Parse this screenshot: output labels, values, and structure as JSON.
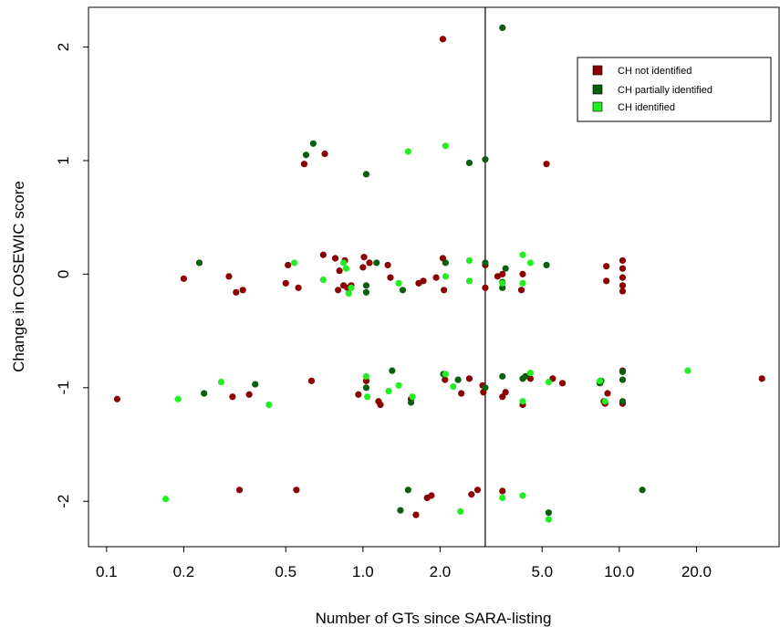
{
  "chart_data": {
    "type": "scatter",
    "xlabel": "Number of GTs since SARA-listing",
    "ylabel": "Change in COSEWIC score",
    "x_scale": "log",
    "xlim": [
      0.085,
      42
    ],
    "ylim": [
      -2.4,
      2.35
    ],
    "x_ticks": [
      {
        "value": 0.1,
        "label": "0.1"
      },
      {
        "value": 0.2,
        "label": "0.2"
      },
      {
        "value": 0.5,
        "label": "0.5"
      },
      {
        "value": 1.0,
        "label": "1.0"
      },
      {
        "value": 2.0,
        "label": "2.0"
      },
      {
        "value": 5.0,
        "label": "5.0"
      },
      {
        "value": 10.0,
        "label": "10.0"
      },
      {
        "value": 20.0,
        "label": "20.0"
      }
    ],
    "y_ticks": [
      {
        "value": 2,
        "label": "2"
      },
      {
        "value": 1,
        "label": "1"
      },
      {
        "value": 0,
        "label": "0"
      },
      {
        "value": -1,
        "label": "-1"
      },
      {
        "value": -2,
        "label": "-2"
      }
    ],
    "vline_x": 3.0,
    "grid": false,
    "legend_position": "top-right",
    "series": [
      {
        "name": "CH not identified",
        "color": "#8b0000",
        "points": [
          [
            0.11,
            -1.1
          ],
          [
            0.2,
            -0.04
          ],
          [
            0.3,
            -0.02
          ],
          [
            0.31,
            -1.08
          ],
          [
            0.32,
            -0.16
          ],
          [
            0.33,
            -1.9
          ],
          [
            0.34,
            -0.14
          ],
          [
            0.36,
            -1.06
          ],
          [
            0.5,
            -0.08
          ],
          [
            0.51,
            0.08
          ],
          [
            0.55,
            -1.9
          ],
          [
            0.56,
            -0.12
          ],
          [
            0.59,
            0.97
          ],
          [
            0.63,
            -0.94
          ],
          [
            0.7,
            0.17
          ],
          [
            0.71,
            1.06
          ],
          [
            0.78,
            0.14
          ],
          [
            0.8,
            -0.14
          ],
          [
            0.81,
            0.03
          ],
          [
            0.84,
            -0.1
          ],
          [
            0.85,
            0.12
          ],
          [
            0.87,
            -0.12
          ],
          [
            0.9,
            -0.1
          ],
          [
            0.96,
            -1.06
          ],
          [
            1.0,
            0.06
          ],
          [
            1.01,
            0.15
          ],
          [
            1.03,
            -0.94
          ],
          [
            1.06,
            0.1
          ],
          [
            1.15,
            -1.12
          ],
          [
            1.17,
            -1.15
          ],
          [
            1.25,
            0.08
          ],
          [
            1.28,
            -0.03
          ],
          [
            1.54,
            -1.1
          ],
          [
            1.61,
            -2.12
          ],
          [
            1.65,
            -0.08
          ],
          [
            1.72,
            -0.06
          ],
          [
            1.78,
            -1.97
          ],
          [
            1.85,
            -1.95
          ],
          [
            1.93,
            -0.03
          ],
          [
            2.05,
            2.07
          ],
          [
            2.05,
            0.14
          ],
          [
            2.07,
            -0.14
          ],
          [
            2.09,
            -0.93
          ],
          [
            2.42,
            -1.05
          ],
          [
            2.6,
            -0.92
          ],
          [
            2.65,
            -1.94
          ],
          [
            2.8,
            -1.9
          ],
          [
            2.93,
            -0.98
          ],
          [
            2.95,
            -1.04
          ],
          [
            3.0,
            0.08
          ],
          [
            3.0,
            -0.12
          ],
          [
            3.35,
            -0.02
          ],
          [
            3.5,
            0.0
          ],
          [
            3.5,
            -1.08
          ],
          [
            3.5,
            -1.91
          ],
          [
            3.6,
            -1.04
          ],
          [
            4.15,
            -0.14
          ],
          [
            4.2,
            0.0
          ],
          [
            4.2,
            -1.15
          ],
          [
            4.5,
            -0.92
          ],
          [
            5.2,
            0.97
          ],
          [
            5.5,
            -0.92
          ],
          [
            6.0,
            -0.96
          ],
          [
            8.7,
            -1.12
          ],
          [
            8.8,
            -1.14
          ],
          [
            8.9,
            0.07
          ],
          [
            8.9,
            -0.06
          ],
          [
            9.0,
            -1.05
          ],
          [
            10.3,
            0.12
          ],
          [
            10.3,
            0.05
          ],
          [
            10.3,
            -0.03
          ],
          [
            10.3,
            -0.1
          ],
          [
            10.3,
            -0.15
          ],
          [
            10.3,
            -0.85
          ],
          [
            10.3,
            -1.14
          ],
          [
            36.0,
            -0.92
          ]
        ]
      },
      {
        "name": "CH partially identified",
        "color": "#0b5e0b",
        "points": [
          [
            0.23,
            0.1
          ],
          [
            0.24,
            -1.05
          ],
          [
            0.38,
            -0.97
          ],
          [
            0.6,
            1.05
          ],
          [
            0.64,
            1.15
          ],
          [
            1.03,
            0.88
          ],
          [
            1.03,
            -0.1
          ],
          [
            1.03,
            -0.16
          ],
          [
            1.03,
            -1.0
          ],
          [
            1.13,
            0.1
          ],
          [
            1.3,
            -0.85
          ],
          [
            1.4,
            -2.08
          ],
          [
            1.43,
            -0.14
          ],
          [
            1.5,
            -1.9
          ],
          [
            1.54,
            -1.13
          ],
          [
            2.06,
            -0.88
          ],
          [
            2.1,
            0.1
          ],
          [
            2.35,
            -0.93
          ],
          [
            2.6,
            0.98
          ],
          [
            3.0,
            1.01
          ],
          [
            3.0,
            0.1
          ],
          [
            3.0,
            -1.0
          ],
          [
            3.5,
            2.17
          ],
          [
            3.5,
            -0.07
          ],
          [
            3.5,
            -0.12
          ],
          [
            3.5,
            -0.9
          ],
          [
            3.6,
            0.05
          ],
          [
            4.2,
            -0.92
          ],
          [
            4.3,
            -0.9
          ],
          [
            5.2,
            0.08
          ],
          [
            5.3,
            -2.1
          ],
          [
            8.4,
            -0.96
          ],
          [
            8.5,
            -0.94
          ],
          [
            10.3,
            -0.93
          ],
          [
            10.3,
            -0.86
          ],
          [
            10.3,
            -1.12
          ],
          [
            12.3,
            -1.9
          ]
        ]
      },
      {
        "name": "CH identified",
        "color": "#22ee22",
        "points": [
          [
            0.17,
            -1.98
          ],
          [
            0.19,
            -1.1
          ],
          [
            0.28,
            -0.95
          ],
          [
            0.43,
            -1.15
          ],
          [
            0.54,
            0.1
          ],
          [
            0.7,
            -0.05
          ],
          [
            0.84,
            0.1
          ],
          [
            0.86,
            0.05
          ],
          [
            0.88,
            -0.17
          ],
          [
            0.9,
            -0.12
          ],
          [
            1.03,
            -0.9
          ],
          [
            1.04,
            -1.08
          ],
          [
            1.26,
            -1.03
          ],
          [
            1.38,
            -0.08
          ],
          [
            1.38,
            -0.98
          ],
          [
            1.5,
            1.08
          ],
          [
            1.56,
            -1.08
          ],
          [
            2.1,
            1.13
          ],
          [
            2.1,
            -0.02
          ],
          [
            2.1,
            -0.88
          ],
          [
            2.25,
            -0.99
          ],
          [
            2.4,
            -2.09
          ],
          [
            2.6,
            0.12
          ],
          [
            2.6,
            -0.06
          ],
          [
            3.5,
            -0.08
          ],
          [
            3.5,
            -1.97
          ],
          [
            4.2,
            0.17
          ],
          [
            4.2,
            -0.08
          ],
          [
            4.2,
            -1.12
          ],
          [
            4.2,
            -1.95
          ],
          [
            4.5,
            0.1
          ],
          [
            4.5,
            -0.87
          ],
          [
            5.3,
            -0.95
          ],
          [
            5.3,
            -2.16
          ],
          [
            8.4,
            -0.94
          ],
          [
            8.8,
            -1.12
          ],
          [
            18.5,
            -0.85
          ]
        ]
      }
    ]
  }
}
